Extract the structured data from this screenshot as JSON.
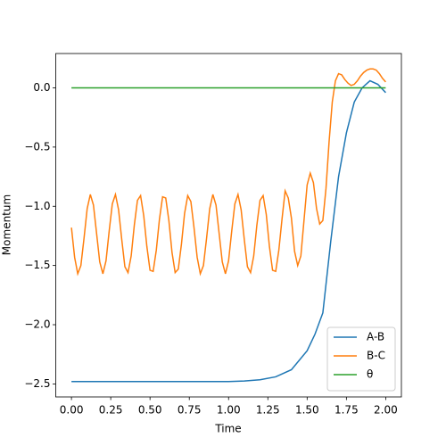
{
  "chart_data": {
    "type": "line",
    "xlabel": "Time",
    "ylabel": "Momentum",
    "xlim": [
      -0.1,
      2.1
    ],
    "ylim": [
      -2.61,
      0.29
    ],
    "xticks": [
      {
        "value": 0,
        "label": "0.00"
      },
      {
        "value": 0.25,
        "label": "0.25"
      },
      {
        "value": 0.5,
        "label": "0.50"
      },
      {
        "value": 0.75,
        "label": "0.75"
      },
      {
        "value": 1,
        "label": "1.00"
      },
      {
        "value": 1.25,
        "label": "1.25"
      },
      {
        "value": 1.5,
        "label": "1.50"
      },
      {
        "value": 1.75,
        "label": "1.75"
      },
      {
        "value": 2,
        "label": "2.00"
      }
    ],
    "yticks": [
      {
        "value": -2.5,
        "label": "−2.5"
      },
      {
        "value": -2,
        "label": "−2.0"
      },
      {
        "value": -1.5,
        "label": "−1.5"
      },
      {
        "value": -1,
        "label": "−1.0"
      },
      {
        "value": -0.5,
        "label": "−0.5"
      },
      {
        "value": 0,
        "label": "0.0"
      }
    ],
    "legend": "lower right",
    "series": [
      {
        "name": "A-B",
        "color": "#1f77b4",
        "x": [
          0,
          0.1,
          0.2,
          0.3,
          0.4,
          0.5,
          0.6,
          0.7,
          0.8,
          0.9,
          1.0,
          1.1,
          1.2,
          1.3,
          1.4,
          1.5,
          1.55,
          1.6,
          1.65,
          1.7,
          1.75,
          1.8,
          1.85,
          1.9,
          1.95,
          2.0
        ],
        "values": [
          -2.48,
          -2.48,
          -2.48,
          -2.48,
          -2.48,
          -2.48,
          -2.48,
          -2.48,
          -2.48,
          -2.48,
          -2.48,
          -2.475,
          -2.465,
          -2.44,
          -2.38,
          -2.22,
          -2.08,
          -1.9,
          -1.3,
          -0.75,
          -0.38,
          -0.12,
          0.0,
          0.06,
          0.03,
          -0.04
        ]
      },
      {
        "name": "B-C",
        "color": "#ff7f0e",
        "x": [
          0,
          0.02,
          0.04,
          0.06,
          0.08,
          0.1,
          0.12,
          0.14,
          0.16,
          0.18,
          0.2,
          0.22,
          0.24,
          0.26,
          0.28,
          0.3,
          0.32,
          0.34,
          0.36,
          0.38,
          0.4,
          0.42,
          0.44,
          0.46,
          0.48,
          0.5,
          0.52,
          0.54,
          0.56,
          0.58,
          0.6,
          0.62,
          0.64,
          0.66,
          0.68,
          0.7,
          0.72,
          0.74,
          0.76,
          0.78,
          0.8,
          0.82,
          0.84,
          0.86,
          0.88,
          0.9,
          0.92,
          0.94,
          0.96,
          0.98,
          1.0,
          1.02,
          1.04,
          1.06,
          1.08,
          1.1,
          1.12,
          1.14,
          1.16,
          1.18,
          1.2,
          1.22,
          1.24,
          1.26,
          1.28,
          1.3,
          1.32,
          1.34,
          1.36,
          1.38,
          1.4,
          1.42,
          1.44,
          1.46,
          1.48,
          1.5,
          1.52,
          1.54,
          1.56,
          1.58,
          1.6,
          1.62,
          1.64,
          1.66,
          1.68,
          1.7,
          1.72,
          1.74,
          1.76,
          1.78,
          1.8,
          1.82,
          1.84,
          1.86,
          1.88,
          1.9,
          1.92,
          1.94,
          1.96,
          1.98,
          2.0
        ],
        "values": [
          -1.18,
          -1.43,
          -1.57,
          -1.5,
          -1.27,
          -1.02,
          -0.9,
          -0.99,
          -1.23,
          -1.47,
          -1.57,
          -1.46,
          -1.21,
          -0.98,
          -0.9,
          -1.03,
          -1.28,
          -1.51,
          -1.56,
          -1.42,
          -1.16,
          -0.95,
          -0.91,
          -1.08,
          -1.34,
          -1.54,
          -1.55,
          -1.37,
          -1.11,
          -0.92,
          -0.93,
          -1.12,
          -1.39,
          -1.56,
          -1.53,
          -1.32,
          -1.06,
          -0.91,
          -0.96,
          -1.18,
          -1.43,
          -1.57,
          -1.5,
          -1.27,
          -1.02,
          -0.9,
          -0.99,
          -1.23,
          -1.47,
          -1.57,
          -1.46,
          -1.21,
          -0.98,
          -0.9,
          -1.03,
          -1.28,
          -1.51,
          -1.56,
          -1.42,
          -1.16,
          -0.95,
          -0.91,
          -1.07,
          -1.34,
          -1.54,
          -1.55,
          -1.37,
          -1.11,
          -0.87,
          -0.93,
          -1.1,
          -1.38,
          -1.5,
          -1.42,
          -1.12,
          -0.82,
          -0.72,
          -0.8,
          -1.02,
          -1.15,
          -1.12,
          -0.85,
          -0.45,
          -0.12,
          0.06,
          0.12,
          0.11,
          0.07,
          0.04,
          0.02,
          0.03,
          0.06,
          0.1,
          0.13,
          0.15,
          0.16,
          0.16,
          0.15,
          0.12,
          0.08,
          0.05
        ]
      },
      {
        "name": "θ",
        "color": "#2ca02c",
        "x": [
          0,
          2.0
        ],
        "values": [
          0,
          0
        ]
      }
    ]
  }
}
